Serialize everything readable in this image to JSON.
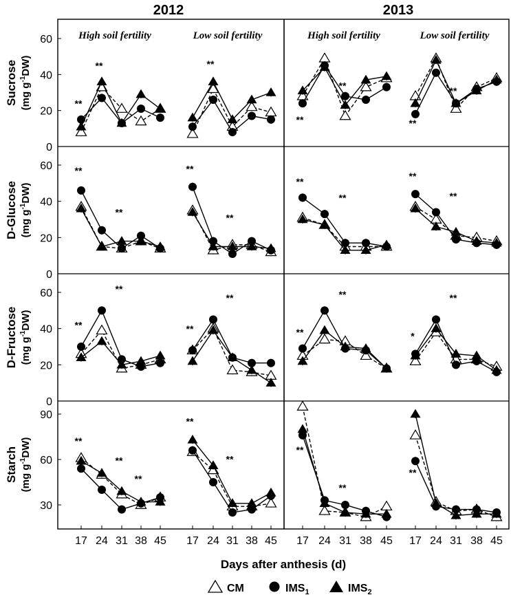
{
  "chart_data": {
    "type": "line",
    "title_2012": "2012",
    "title_2013": "2013",
    "xlabel": "Days after anthesis (d)",
    "x": [
      17,
      24,
      31,
      38,
      45
    ],
    "x_tick_labels": [
      "17",
      "24",
      "31",
      "38",
      "45"
    ],
    "panel_titles": {
      "p2012_high": "High soil fertility",
      "p2012_low": "Low soil  fertility",
      "p2013_high": "High soil fertility",
      "p2013_low": "Low soil fertility"
    },
    "legend": {
      "cm": "CM",
      "ims1": "IMS",
      "ims1_sub": "1",
      "ims2": "IMS",
      "ims2_sub": "2"
    },
    "series_names": [
      "CM",
      "IMS1",
      "IMS2"
    ],
    "rows": [
      {
        "key": "sucrose",
        "name": "Sucrose",
        "unit_pre": "(mg g",
        "unit_sup": "-1",
        "unit_post": "DW)",
        "ylim": [
          0,
          70
        ],
        "yticks": [
          "0",
          "20",
          "40",
          "60"
        ],
        "yticks_values": [
          0,
          20,
          40,
          60
        ],
        "panels": {
          "p2012_high": {
            "CM": [
              8,
              33,
              21,
              14,
              21
            ],
            "IMS1": [
              15,
              27,
              13,
              21,
              16
            ],
            "IMS2": [
              11,
              36,
              13,
              29,
              21
            ]
          },
          "p2012_low": {
            "CM": [
              7,
              32,
              11,
              22,
              19
            ],
            "IMS1": [
              11,
              26,
              8,
              17,
              15
            ],
            "IMS2": [
              16,
              36,
              15,
              26,
              30
            ]
          },
          "p2013_high": {
            "CM": [
              28,
              49,
              17,
              33,
              38
            ],
            "IMS1": [
              24,
              45,
              28,
              26,
              33
            ],
            "IMS2": [
              31,
              44,
              23,
              37,
              39
            ]
          },
          "p2013_low": {
            "CM": [
              28,
              49,
              21,
              33,
              38
            ],
            "IMS1": [
              18,
              41,
              24,
              32,
              36
            ],
            "IMS2": [
              24,
              48,
              24,
              31,
              37
            ]
          }
        },
        "sig": {
          "p2012_high": [
            {
              "label": "**",
              "x": 17,
              "y": 22
            },
            {
              "label": "**",
              "x": 24,
              "y": 43
            }
          ],
          "p2012_low": [
            {
              "label": "**",
              "x": 24,
              "y": 44
            }
          ],
          "p2013_high": [
            {
              "label": "**",
              "x": 17,
              "y": 13
            },
            {
              "label": "**",
              "x": 31,
              "y": 32
            }
          ],
          "p2013_low": [
            {
              "label": "**",
              "x": 17,
              "y": 11
            },
            {
              "label": "**",
              "x": 31,
              "y": 29
            }
          ]
        }
      },
      {
        "key": "glucose",
        "name": "D-Glucose",
        "unit_pre": "(mg  g",
        "unit_sup": "-1",
        "unit_post": "DW)",
        "ylim": [
          0,
          70
        ],
        "yticks": [
          "0",
          "20",
          "40",
          "60"
        ],
        "yticks_values": [
          0,
          20,
          40,
          60
        ],
        "panels": {
          "p2012_high": {
            "CM": [
              37,
              15,
              14,
              18,
              14
            ],
            "IMS1": [
              46,
              24,
              14,
              21,
              14
            ],
            "IMS2": [
              36,
              15,
              18,
              18,
              15
            ]
          },
          "p2012_low": {
            "CM": [
              35,
              13,
              16,
              16,
              12
            ],
            "IMS1": [
              48,
              18,
              11,
              18,
              13
            ],
            "IMS2": [
              34,
              15,
              15,
              15,
              14
            ]
          },
          "p2013_high": {
            "CM": [
              31,
              27,
              15,
              15,
              15
            ],
            "IMS1": [
              42,
              33,
              17,
              17,
              15
            ],
            "IMS2": [
              30,
              27,
              13,
              13,
              16
            ]
          },
          "p2013_low": {
            "CM": [
              37,
              30,
              21,
              20,
              18
            ],
            "IMS1": [
              44,
              34,
              19,
              17,
              16
            ],
            "IMS2": [
              36,
              26,
              23,
              18,
              17
            ]
          }
        },
        "sig": {
          "p2012_high": [
            {
              "label": "**",
              "x": 17,
              "y": 55
            },
            {
              "label": "**",
              "x": 31,
              "y": 32
            }
          ],
          "p2012_low": [
            {
              "label": "**",
              "x": 17,
              "y": 56
            },
            {
              "label": "**",
              "x": 31,
              "y": 29
            }
          ],
          "p2013_high": [
            {
              "label": "**",
              "x": 17,
              "y": 49
            },
            {
              "label": "**",
              "x": 31,
              "y": 40
            }
          ],
          "p2013_low": [
            {
              "label": "**",
              "x": 17,
              "y": 52
            },
            {
              "label": "**",
              "x": 31,
              "y": 41
            }
          ]
        }
      },
      {
        "key": "fructose",
        "name": "D-Fructose",
        "unit_pre": "(mg g",
        "unit_sup": "-1",
        "unit_post": "DW)",
        "ylim": [
          0,
          70
        ],
        "yticks": [
          "0",
          "20",
          "40",
          "60"
        ],
        "yticks_values": [
          0,
          20,
          40,
          60
        ],
        "panels": {
          "p2012_high": {
            "CM": [
              26,
              39,
              18,
              20,
              23
            ],
            "IMS1": [
              30,
              50,
              23,
              19,
              21
            ],
            "IMS2": [
              24,
              33,
              20,
              22,
              25
            ]
          },
          "p2012_low": {
            "CM": [
              28,
              40,
              17,
              16,
              14
            ],
            "IMS1": [
              28,
              45,
              24,
              21,
              21
            ],
            "IMS2": [
              22,
              39,
              24,
              17,
              10
            ]
          },
          "p2013_high": {
            "CM": [
              25,
              34,
              33,
              25,
              18
            ],
            "IMS1": [
              29,
              50,
              29,
              28,
              18
            ],
            "IMS2": [
              22,
              39,
              30,
              29,
              18
            ]
          },
          "p2013_low": {
            "CM": [
              22,
              38,
              23,
              23,
              19
            ],
            "IMS1": [
              26,
              45,
              20,
              22,
              16
            ],
            "IMS2": [
              25,
              40,
              26,
              25,
              17
            ]
          }
        },
        "sig": {
          "p2012_high": [
            {
              "label": "**",
              "x": 17,
              "y": 40
            },
            {
              "label": "**",
              "x": 31,
              "y": 60
            }
          ],
          "p2012_low": [
            {
              "label": "**",
              "x": 17,
              "y": 38
            },
            {
              "label": "**",
              "x": 31,
              "y": 55
            }
          ],
          "p2013_high": [
            {
              "label": "**",
              "x": 17,
              "y": 36
            },
            {
              "label": "**",
              "x": 31,
              "y": 57
            }
          ],
          "p2013_low": [
            {
              "label": "*",
              "x": 17,
              "y": 34
            },
            {
              "label": "**",
              "x": 31,
              "y": 55
            }
          ]
        }
      },
      {
        "key": "starch",
        "name": "Starch",
        "unit_pre": "(mg g",
        "unit_sup": "-1",
        "unit_post": "DW)",
        "ylim": [
          20,
          95
        ],
        "yticks": [
          "30",
          "60",
          "90"
        ],
        "yticks_values": [
          30,
          60,
          90
        ],
        "panels": {
          "p2012_high": {
            "CM": [
              61,
              50,
              37,
              30,
              35
            ],
            "IMS1": [
              54,
              40,
              27,
              31,
              35
            ],
            "IMS2": [
              59,
              51,
              39,
              32,
              32
            ]
          },
          "p2012_low": {
            "CM": [
              65,
              53,
              29,
              29,
              31
            ],
            "IMS1": [
              66,
              45,
              25,
              27,
              36
            ],
            "IMS2": [
              73,
              56,
              31,
              31,
              38
            ]
          },
          "p2013_high": {
            "CM": [
              95,
              26,
              25,
              22,
              29
            ],
            "IMS1": [
              76,
              33,
              30,
              26,
              22
            ],
            "IMS2": [
              80,
              31,
              25,
              24,
              24
            ]
          },
          "p2013_low": {
            "CM": [
              76,
              32,
              26,
              27,
              22
            ],
            "IMS1": [
              59,
              29,
              27,
              27,
              25
            ],
            "IMS2": [
              90,
              31,
              23,
              24,
              24
            ]
          }
        },
        "sig": {
          "p2012_high": [
            {
              "label": "**",
              "x": 17,
              "y": 70
            },
            {
              "label": "**",
              "x": 31,
              "y": 57
            },
            {
              "label": "**",
              "x": 38,
              "y": 45
            }
          ],
          "p2012_low": [
            {
              "label": "**",
              "x": 17,
              "y": 83
            },
            {
              "label": "**",
              "x": 31,
              "y": 58
            }
          ],
          "p2013_high": [
            {
              "label": "**",
              "x": 17,
              "y": 64
            },
            {
              "label": "**",
              "x": 31,
              "y": 39
            }
          ],
          "p2013_low": [
            {
              "label": "**",
              "x": 17,
              "y": 49
            }
          ]
        }
      }
    ]
  }
}
